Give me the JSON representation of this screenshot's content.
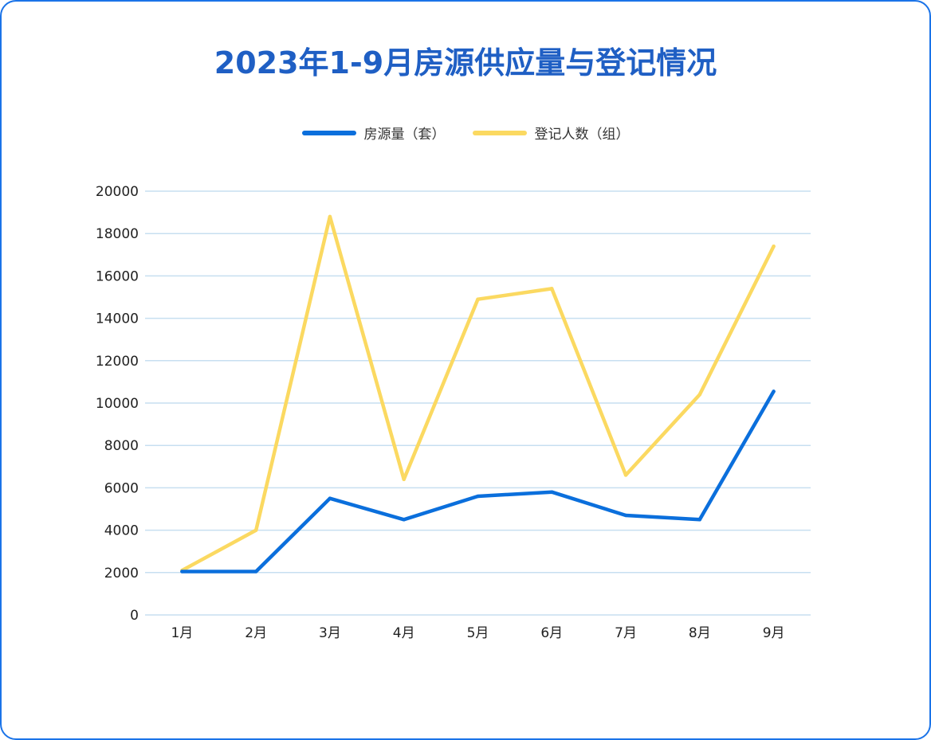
{
  "title": "2023年1-9月房源供应量与登记情况",
  "colors": {
    "border": "#1a73e8",
    "title": "#1f5fc4",
    "grid": "#c7dff0",
    "series_supply": "#0b6fdc",
    "series_registered": "#fbd961"
  },
  "chart_data": {
    "type": "line",
    "title": "2023年1-9月房源供应量与登记情况",
    "categories": [
      "1月",
      "2月",
      "3月",
      "4月",
      "5月",
      "6月",
      "7月",
      "8月",
      "9月"
    ],
    "series": [
      {
        "name": "房源量（套）",
        "color": "#0b6fdc",
        "values": [
          2050,
          2050,
          5500,
          4500,
          5600,
          5800,
          4700,
          4500,
          10550
        ]
      },
      {
        "name": "登记人数（组）",
        "color": "#fbd961",
        "values": [
          2100,
          4000,
          18800,
          6400,
          14900,
          15400,
          6600,
          10400,
          17400
        ]
      }
    ],
    "yticks": [
      "0",
      "2000",
      "4000",
      "6000",
      "8000",
      "10000",
      "12000",
      "14000",
      "16000",
      "18000",
      "20000"
    ],
    "ylim": [
      0,
      20000
    ],
    "xlabel": "",
    "ylabel": "",
    "grid": true,
    "legend_position": "top-center"
  }
}
